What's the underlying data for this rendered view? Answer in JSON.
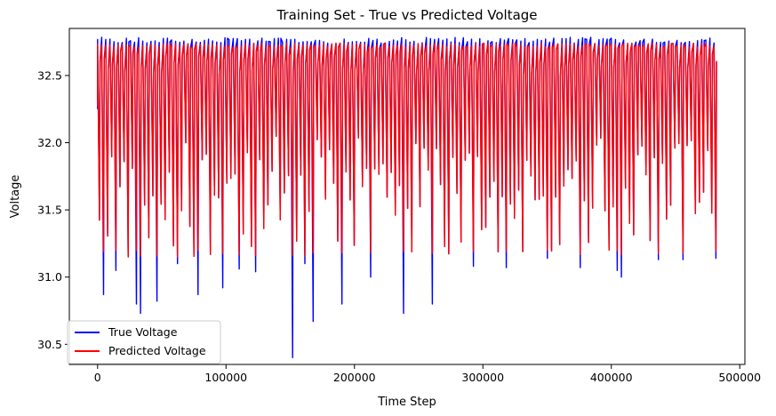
{
  "chart_data": {
    "type": "line",
    "title": "Training Set - True vs Predicted Voltage",
    "xlabel": "Time Step",
    "ylabel": "Voltage",
    "xlim": [
      -22000,
      504000
    ],
    "ylim": [
      30.35,
      32.85
    ],
    "xticks": [
      0,
      100000,
      200000,
      300000,
      400000,
      500000
    ],
    "xtick_labels": [
      "0",
      "100000",
      "200000",
      "300000",
      "400000",
      "500000"
    ],
    "yticks": [
      30.5,
      31.0,
      31.5,
      32.0,
      32.5
    ],
    "ytick_labels": [
      "30.5",
      "31.0",
      "31.5",
      "32.0",
      "32.5"
    ],
    "grid": false,
    "legend_position": "lower-left",
    "x_max": 481000,
    "series": [
      {
        "name": "True Voltage",
        "color": "#0000ff",
        "description_high": 32.76,
        "min_points": [
          [
            4000,
            30.87
          ],
          [
            13000,
            31.05
          ],
          [
            22000,
            31.15
          ],
          [
            29000,
            30.8
          ],
          [
            33000,
            30.73
          ],
          [
            45000,
            30.82
          ],
          [
            60000,
            31.1
          ],
          [
            78000,
            30.87
          ],
          [
            95000,
            30.92
          ],
          [
            108000,
            31.06
          ],
          [
            122000,
            31.04
          ],
          [
            150000,
            30.4
          ],
          [
            160000,
            31.1
          ],
          [
            167000,
            30.67
          ],
          [
            190000,
            30.8
          ],
          [
            212000,
            31.0
          ],
          [
            237000,
            30.73
          ],
          [
            258000,
            30.8
          ],
          [
            290000,
            31.08
          ],
          [
            317000,
            31.07
          ],
          [
            350000,
            31.14
          ],
          [
            373000,
            31.07
          ],
          [
            402000,
            31.05
          ],
          [
            405000,
            31.0
          ],
          [
            436000,
            31.13
          ],
          [
            455000,
            31.13
          ],
          [
            480000,
            31.14
          ]
        ]
      },
      {
        "name": "Predicted Voltage",
        "color": "#ff0000",
        "description_high": 32.74,
        "low": 31.15
      }
    ]
  }
}
